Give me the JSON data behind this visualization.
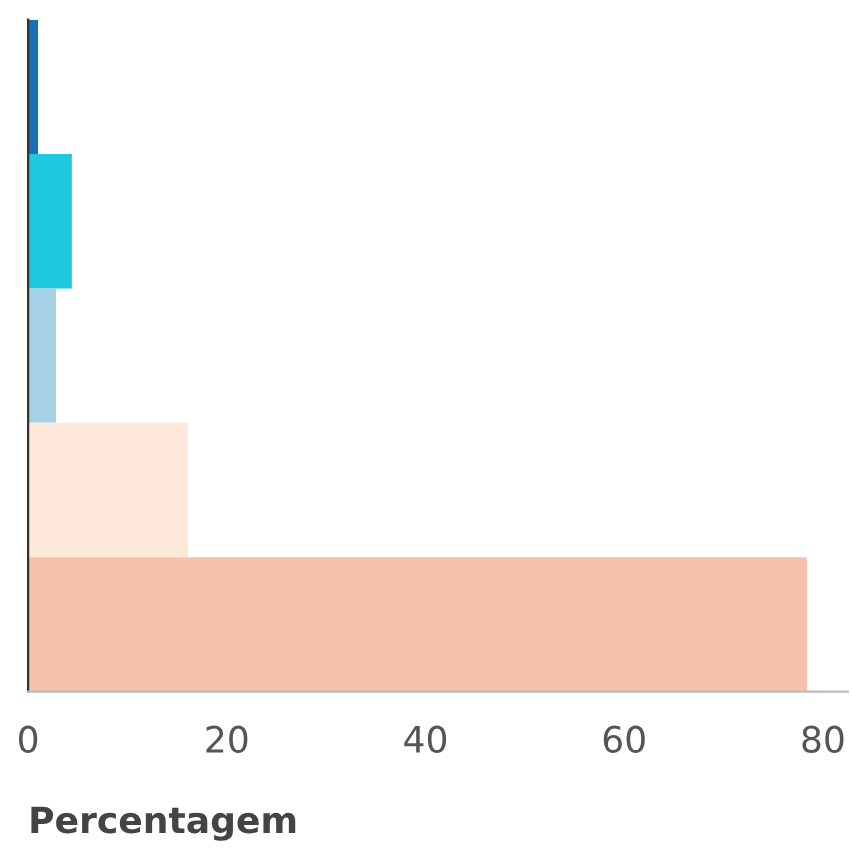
{
  "chart_data": {
    "type": "bar",
    "orientation": "horizontal",
    "xlabel": "Percentagem",
    "categories": [
      null,
      null,
      null,
      null,
      null
    ],
    "values": [
      1.0,
      4.4,
      2.8,
      16.1,
      78.4
    ],
    "colors": [
      "#1a6fb5",
      "#1ec8e0",
      "#a6d0e4",
      "#fde8da",
      "#f6c2ad"
    ],
    "xlim": [
      0,
      82.5
    ],
    "xticks": [
      0,
      20,
      40,
      60,
      80
    ],
    "tick_labels": "x",
    "grid": false,
    "legend": false
  }
}
